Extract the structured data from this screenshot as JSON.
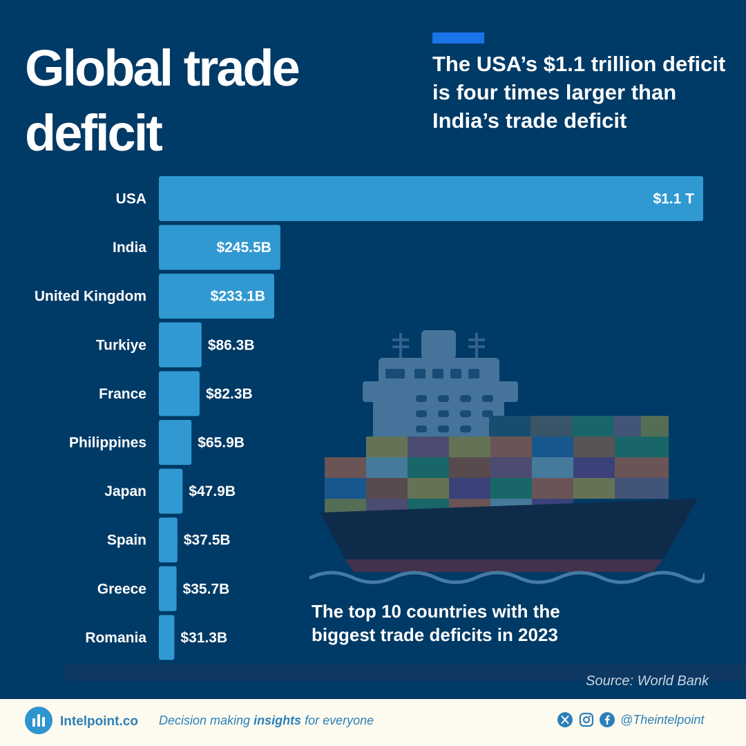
{
  "header": {
    "title": "Global trade deficit",
    "headline": "The USA’s $1.1 trillion deficit is four times larger than India’s trade deficit",
    "accent_color": "#1a73e8"
  },
  "chart_data": {
    "type": "bar",
    "orientation": "horizontal",
    "title": "Global trade deficit",
    "subtitle": "The top 10 countries with the biggest trade deficits in 2023",
    "categories": [
      "USA",
      "India",
      "United Kingdom",
      "Turkiye",
      "France",
      "Philippines",
      "Japan",
      "Spain",
      "Greece",
      "Romania"
    ],
    "values": [
      1100,
      245.5,
      233.1,
      86.3,
      82.3,
      65.9,
      47.9,
      37.5,
      35.7,
      31.3
    ],
    "unit": "billion USD",
    "value_labels": [
      "$1.1 T",
      "$245.5B",
      "$233.1B",
      "$86.3B",
      "$82.3B",
      "$65.9B",
      "$47.9B",
      "$37.5B",
      "$35.7B",
      "$31.3B"
    ],
    "xlim": [
      0,
      1100
    ],
    "bar_color": "#3199d2",
    "grid": false,
    "legend": "none"
  },
  "subtitle": "The top 10 countries with the biggest trade deficits in 2023",
  "source": "Source: World Bank",
  "footer": {
    "brand": "Intelpoint.co",
    "tagline_pre": "Decision making ",
    "tagline_bold": "insights",
    "tagline_post": " for everyone",
    "handle": "@Theintelpoint",
    "social_icons": [
      "x-icon",
      "instagram-icon",
      "facebook-icon"
    ],
    "brand_color": "#2c7fb8"
  }
}
